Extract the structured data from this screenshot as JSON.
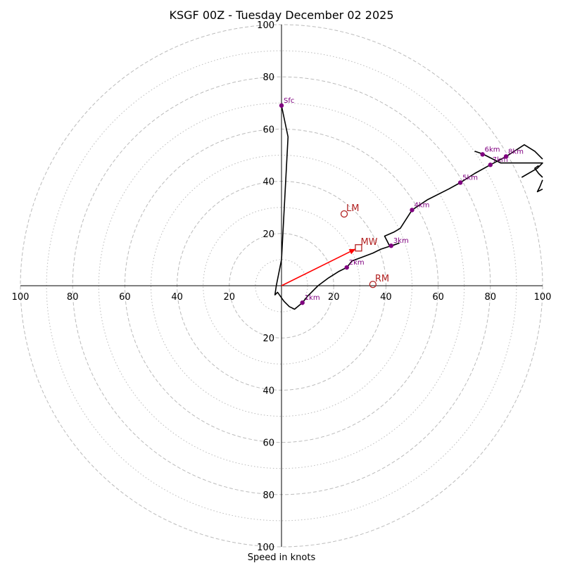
{
  "chart_data": {
    "type": "hodograph",
    "title": "KSGF 00Z - Tuesday December 02 2025",
    "xlabel": "Speed in knots",
    "range": [
      -100,
      100
    ],
    "rings": [
      10,
      20,
      30,
      40,
      50,
      60,
      70,
      80,
      90,
      100
    ],
    "tick_values": [
      20,
      40,
      60,
      80,
      100
    ],
    "hodograph": [
      [
        0,
        69
      ],
      [
        2.5,
        57
      ],
      [
        0,
        10
      ],
      [
        -2,
        0
      ],
      [
        -2.5,
        -3.5
      ],
      [
        -1.5,
        -2.5
      ],
      [
        1,
        -6
      ],
      [
        3,
        -8
      ],
      [
        5,
        -9
      ],
      [
        8,
        -6.5
      ],
      [
        10,
        -4
      ],
      [
        12,
        -2
      ],
      [
        14,
        0
      ],
      [
        18,
        3
      ],
      [
        22,
        5.5
      ],
      [
        25,
        7
      ],
      [
        27,
        9.5
      ],
      [
        31,
        11
      ],
      [
        35,
        12.5
      ],
      [
        38,
        14
      ],
      [
        42,
        15.3
      ],
      [
        45,
        16.3
      ],
      [
        41.5,
        15
      ],
      [
        40.5,
        17
      ],
      [
        39.5,
        19
      ],
      [
        43,
        20.5
      ],
      [
        45.5,
        22
      ],
      [
        50,
        29
      ],
      [
        56,
        33
      ],
      [
        64,
        37
      ],
      [
        68.5,
        39.5
      ],
      [
        74,
        43
      ],
      [
        80,
        46.3
      ],
      [
        86,
        49.5
      ],
      [
        93,
        54
      ],
      [
        97,
        51.5
      ],
      [
        100,
        48.5
      ]
    ],
    "hodograph_upper": [
      [
        74,
        51.5
      ],
      [
        77,
        50.5
      ],
      [
        81,
        48.5
      ],
      [
        84,
        47
      ],
      [
        100,
        47
      ],
      [
        98,
        45
      ],
      [
        92,
        41.5
      ]
    ],
    "hodograph_offscale": [
      [
        98.5,
        46
      ],
      [
        97,
        45
      ],
      [
        98.5,
        43
      ],
      [
        100,
        41.5
      ]
    ],
    "hodograph_lower": [
      [
        100,
        40.5
      ],
      [
        99,
        38
      ],
      [
        98,
        36
      ],
      [
        100,
        37
      ]
    ],
    "height_markers": [
      {
        "label": "Sfc",
        "u": 0,
        "v": 69
      },
      {
        "label": "1km",
        "u": 8,
        "v": -6.5
      },
      {
        "label": "2km",
        "u": 25,
        "v": 7
      },
      {
        "label": "3km",
        "u": 42,
        "v": 15.3
      },
      {
        "label": "4km",
        "u": 50,
        "v": 29
      },
      {
        "label": "5km",
        "u": 68.5,
        "v": 39.5
      },
      {
        "label": "6km",
        "u": 77,
        "v": 50.3
      },
      {
        "label": "7km",
        "u": 80,
        "v": 46.3
      },
      {
        "label": "8km",
        "u": 86,
        "v": 49.5
      }
    ],
    "motions": {
      "lm": {
        "label": "LM",
        "u": 24,
        "v": 27.5
      },
      "mw": {
        "label": "MW",
        "u": 29.5,
        "v": 14.5
      },
      "rm": {
        "label": "RM",
        "u": 35,
        "v": 0.5
      }
    },
    "colors": {
      "grid": "#bbbbbb",
      "hodograph": "#000000",
      "marker": "#800080",
      "motion": "#b22222",
      "arrow": "#ff0000"
    }
  }
}
